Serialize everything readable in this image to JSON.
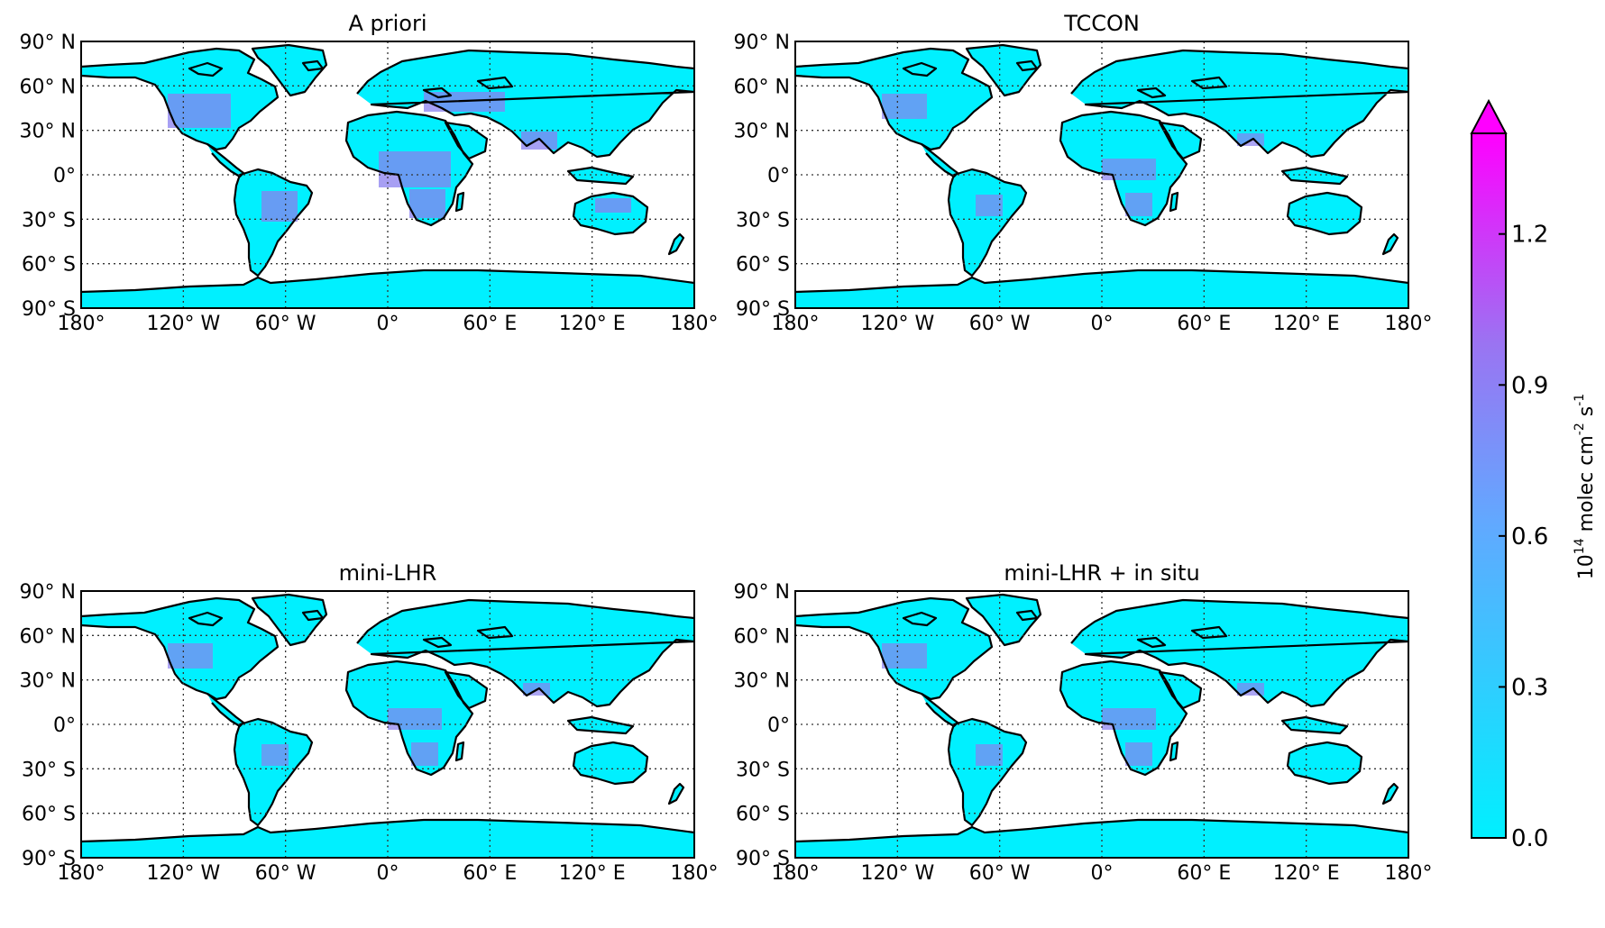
{
  "figure": {
    "panels": [
      {
        "title": "A priori",
        "lat_ticks": [
          "90° N",
          "60° N",
          "30° N",
          "0°",
          "30° S",
          "60° S",
          "90° S"
        ],
        "lon_ticks": [
          "180°",
          "120° W",
          "60° W",
          "0°",
          "60° E",
          "120° E",
          "180°"
        ]
      },
      {
        "title": "TCCON",
        "lat_ticks": [
          "90° N",
          "60° N",
          "30° N",
          "0°",
          "30° S",
          "60° S",
          "90° S"
        ],
        "lon_ticks": [
          "180°",
          "120° W",
          "60° W",
          "0°",
          "60° E",
          "120° E",
          "180°"
        ]
      },
      {
        "title": "mini-LHR",
        "lat_ticks": [
          "90° N",
          "60° N",
          "30° N",
          "0°",
          "30° S",
          "60° S",
          "90° S"
        ],
        "lon_ticks": [
          "180°",
          "120° W",
          "60° W",
          "0°",
          "60° E",
          "120° E",
          "180°"
        ]
      },
      {
        "title": "mini-LHR + in situ",
        "lat_ticks": [
          "90° N",
          "60° N",
          "30° N",
          "0°",
          "30° S",
          "60° S",
          "90° S"
        ],
        "lon_ticks": [
          "180°",
          "120° W",
          "60° W",
          "0°",
          "60° E",
          "120° E",
          "180°"
        ]
      }
    ],
    "colorbar": {
      "ticks": [
        "0.0",
        "0.3",
        "0.6",
        "0.9",
        "1.2"
      ],
      "label_base": "10",
      "label_exp": "14",
      "label_unit": "molec cm",
      "label_cm_exp": "-2",
      "label_s": "s",
      "label_s_exp": "-1",
      "color_min": "#00f0ff",
      "color_mid": "#7b8cf0",
      "color_max": "#ff00ff"
    },
    "colors": {
      "ocean": "#ffffff",
      "land_low": "#00f0ff",
      "coast": "#000000",
      "grid": "#333333"
    }
  }
}
